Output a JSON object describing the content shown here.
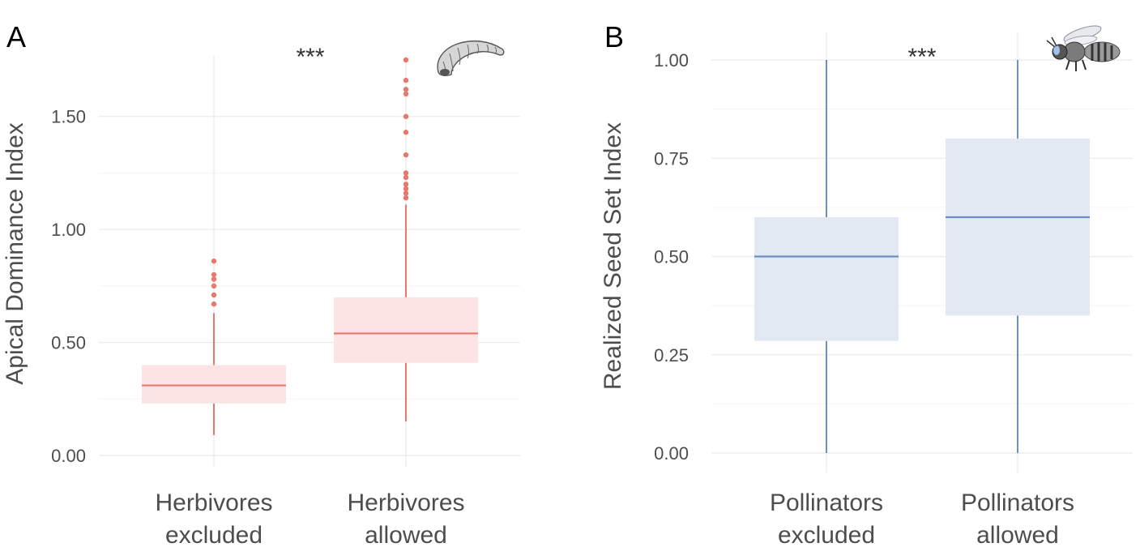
{
  "chart_data": [
    {
      "type": "box",
      "panel_label": "A",
      "ylabel": "Apical Dominance Index",
      "ylim": [
        -0.05,
        1.77
      ],
      "yticks": [
        0.0,
        0.5,
        1.0,
        1.5
      ],
      "ytick_labels": [
        "0.00",
        "0.50",
        "1.00",
        "1.50"
      ],
      "significance": "***",
      "icon": "caterpillar-icon",
      "color": "#e8776c",
      "fill": "#fce4e4",
      "categories": [
        {
          "line1": "Herbivores",
          "line2": "excluded",
          "whisker_low": 0.09,
          "q1": 0.23,
          "median": 0.31,
          "q3": 0.4,
          "whisker_high": 0.63,
          "outliers": [
            0.67,
            0.71,
            0.75,
            0.78,
            0.8,
            0.86
          ]
        },
        {
          "line1": "Herbivores",
          "line2": "allowed",
          "whisker_low": 0.15,
          "q1": 0.41,
          "median": 0.54,
          "q3": 0.7,
          "whisker_high": 1.11,
          "outliers": [
            1.14,
            1.16,
            1.18,
            1.2,
            1.23,
            1.25,
            1.33,
            1.43,
            1.5,
            1.6,
            1.62,
            1.66,
            1.75
          ]
        }
      ]
    },
    {
      "type": "box",
      "panel_label": "B",
      "ylabel": "Realized Seed Set Index",
      "ylim": [
        -0.05,
        1.07
      ],
      "yticks": [
        0.0,
        0.25,
        0.5,
        0.75,
        1.0
      ],
      "ytick_labels": [
        "0.00",
        "0.25",
        "0.50",
        "0.75",
        "1.00"
      ],
      "significance": "***",
      "icon": "bee-icon",
      "color": "#6b8fc8",
      "fill": "#e3e9f3",
      "categories": [
        {
          "line1": "Pollinators",
          "line2": "excluded",
          "whisker_low": 0.0,
          "q1": 0.285,
          "median": 0.5,
          "q3": 0.6,
          "whisker_high": 1.0,
          "outliers": []
        },
        {
          "line1": "Pollinators",
          "line2": "allowed",
          "whisker_low": 0.0,
          "q1": 0.35,
          "median": 0.6,
          "q3": 0.8,
          "whisker_high": 1.0,
          "outliers": []
        }
      ]
    }
  ]
}
